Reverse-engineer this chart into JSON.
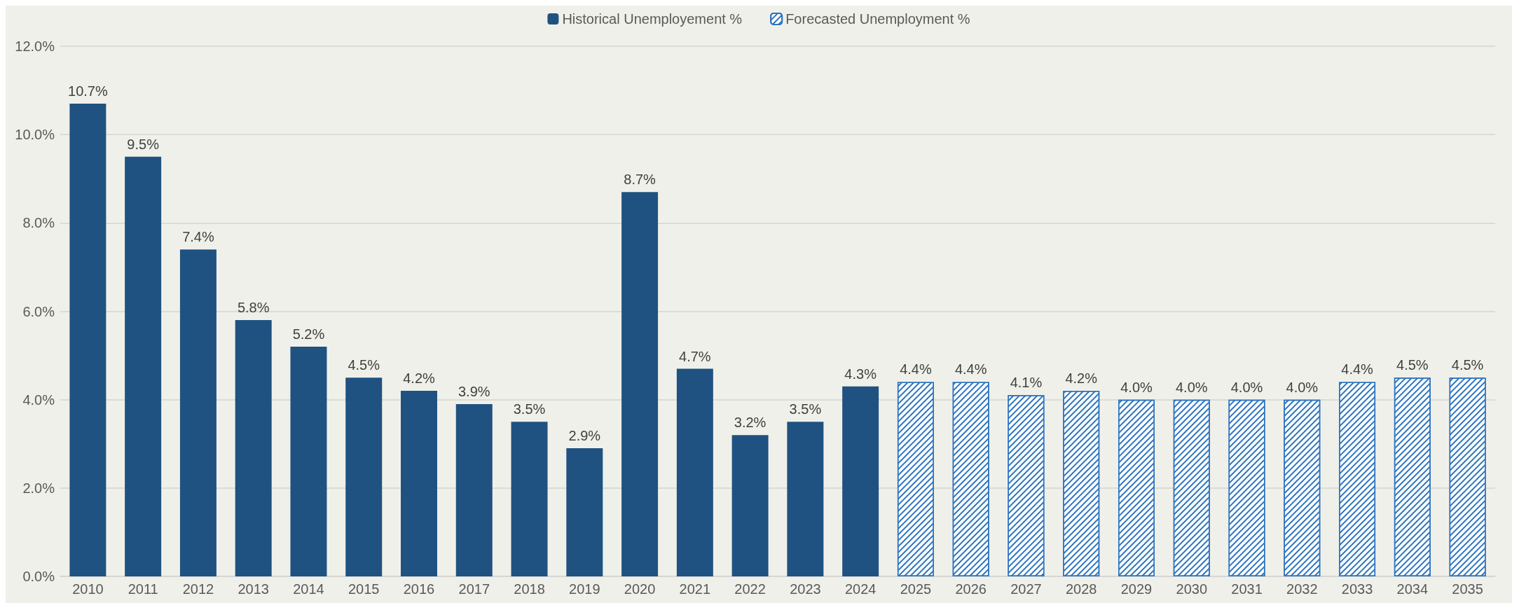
{
  "chart_data": {
    "type": "bar",
    "categories": [
      "2010",
      "2011",
      "2012",
      "2013",
      "2014",
      "2015",
      "2016",
      "2017",
      "2018",
      "2019",
      "2020",
      "2021",
      "2022",
      "2023",
      "2024",
      "2025",
      "2026",
      "2027",
      "2028",
      "2029",
      "2030",
      "2031",
      "2032",
      "2033",
      "2034",
      "2035"
    ],
    "series": [
      {
        "name": "Historical Unemployement %",
        "color": "#1f5280",
        "values": [
          10.7,
          9.5,
          7.4,
          5.8,
          5.2,
          4.5,
          4.2,
          3.9,
          3.5,
          2.9,
          8.7,
          4.7,
          3.2,
          3.5,
          4.3,
          null,
          null,
          null,
          null,
          null,
          null,
          null,
          null,
          null,
          null,
          null
        ],
        "value_labels": [
          "10.7%",
          "9.5%",
          "7.4%",
          "5.8%",
          "5.2%",
          "4.5%",
          "4.2%",
          "3.9%",
          "3.5%",
          "2.9%",
          "8.7%",
          "4.7%",
          "3.2%",
          "3.5%",
          "4.3%",
          null,
          null,
          null,
          null,
          null,
          null,
          null,
          null,
          null,
          null,
          null
        ]
      },
      {
        "name": "Forecasted Unemployment %",
        "color": "#2e75c0",
        "values": [
          null,
          null,
          null,
          null,
          null,
          null,
          null,
          null,
          null,
          null,
          null,
          null,
          null,
          null,
          null,
          4.4,
          4.4,
          4.1,
          4.2,
          4.0,
          4.0,
          4.0,
          4.0,
          4.4,
          4.5,
          4.5
        ],
        "value_labels": [
          null,
          null,
          null,
          null,
          null,
          null,
          null,
          null,
          null,
          null,
          null,
          null,
          null,
          null,
          null,
          "4.4%",
          "4.4%",
          "4.1%",
          "4.2%",
          "4.0%",
          "4.0%",
          "4.0%",
          "4.0%",
          "4.4%",
          "4.5%",
          "4.5%"
        ]
      }
    ],
    "ylim": [
      0,
      12
    ],
    "yticks": [
      {
        "value": 0,
        "label": "0.0%"
      },
      {
        "value": 2,
        "label": "2.0%"
      },
      {
        "value": 4,
        "label": "4.0%"
      },
      {
        "value": 6,
        "label": "6.0%"
      },
      {
        "value": 8,
        "label": "8.0%"
      },
      {
        "value": 10,
        "label": "10.0%"
      },
      {
        "value": 12,
        "label": "12.0%"
      }
    ],
    "grid": "y",
    "legend": "top"
  }
}
